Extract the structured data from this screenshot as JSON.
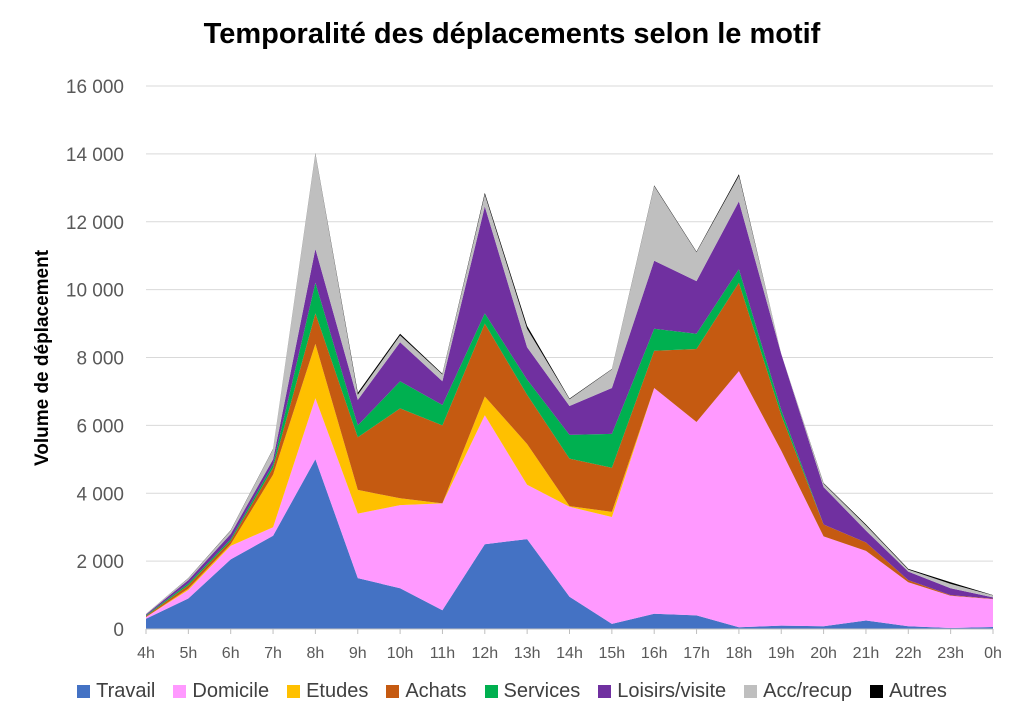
{
  "chart_data": {
    "type": "area",
    "stacked": true,
    "title": "Temporalité des déplacements selon le motif",
    "ylabel": "Volume de déplacement",
    "xlabel": "",
    "ylim": [
      0,
      16000
    ],
    "yticks": [
      0,
      2000,
      4000,
      6000,
      8000,
      10000,
      12000,
      14000,
      16000
    ],
    "ytick_labels": [
      "0",
      "2 000",
      "4 000",
      "6 000",
      "8 000",
      "10 000",
      "12 000",
      "14 000",
      "16 000"
    ],
    "grid": true,
    "legend_position": "bottom",
    "categories": [
      "4h",
      "5h",
      "6h",
      "7h",
      "8h",
      "9h",
      "10h",
      "11h",
      "12h",
      "13h",
      "14h",
      "15h",
      "16h",
      "17h",
      "18h",
      "19h",
      "20h",
      "21h",
      "22h",
      "23h",
      "0h"
    ],
    "series": [
      {
        "name": "Travail",
        "color": "#4472C4",
        "values": [
          300,
          900,
          2050,
          2750,
          5000,
          1500,
          1200,
          550,
          2500,
          2650,
          950,
          150,
          450,
          400,
          50,
          100,
          80,
          250,
          80,
          30,
          60
        ]
      },
      {
        "name": "Domicile",
        "color": "#FF99FF",
        "values": [
          50,
          250,
          400,
          250,
          1800,
          1900,
          2450,
          3150,
          3800,
          1600,
          2650,
          3150,
          6650,
          5700,
          7550,
          5150,
          2650,
          2050,
          1300,
          950,
          820
        ]
      },
      {
        "name": "Etudes",
        "color": "#FFC000",
        "values": [
          0,
          40,
          50,
          1550,
          1600,
          700,
          200,
          0,
          550,
          1200,
          20,
          150,
          0,
          0,
          0,
          0,
          0,
          0,
          0,
          0,
          0
        ]
      },
      {
        "name": "Achats",
        "color": "#C55A11",
        "values": [
          30,
          100,
          100,
          200,
          900,
          1550,
          2650,
          2300,
          2150,
          1450,
          1400,
          1300,
          1100,
          2150,
          2600,
          1050,
          350,
          250,
          60,
          20,
          10
        ]
      },
      {
        "name": "Services",
        "color": "#00B050",
        "values": [
          20,
          50,
          50,
          100,
          900,
          350,
          800,
          600,
          300,
          450,
          700,
          1000,
          650,
          450,
          400,
          150,
          0,
          0,
          0,
          0,
          0
        ]
      },
      {
        "name": "Loisirs/visite",
        "color": "#7030A0",
        "values": [
          30,
          100,
          150,
          150,
          1000,
          750,
          1150,
          700,
          3150,
          950,
          850,
          1350,
          2000,
          1550,
          2000,
          1650,
          1100,
          350,
          250,
          200,
          40
        ]
      },
      {
        "name": "Acc/recup",
        "color": "#BFBFBF",
        "values": [
          20,
          50,
          100,
          300,
          2800,
          150,
          200,
          200,
          350,
          550,
          200,
          550,
          2200,
          850,
          750,
          0,
          100,
          150,
          60,
          130,
          60
        ]
      },
      {
        "name": "Autres",
        "color": "#000000",
        "values": [
          0,
          10,
          10,
          10,
          20,
          60,
          50,
          20,
          50,
          80,
          20,
          10,
          20,
          20,
          50,
          0,
          20,
          30,
          20,
          50,
          10
        ]
      }
    ]
  }
}
